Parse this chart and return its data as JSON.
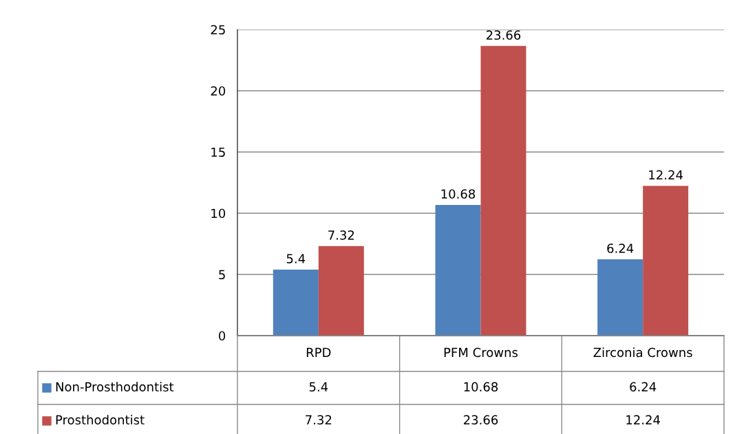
{
  "chart_data": {
    "type": "bar",
    "categories": [
      "RPD",
      "PFM Crowns",
      "Zirconia Crowns"
    ],
    "series": [
      {
        "name": "Non-Prosthodontist",
        "color": "#4f81bd",
        "values": [
          5.4,
          10.68,
          6.24
        ],
        "value_labels": [
          "5.4",
          "10.68",
          "6.24"
        ]
      },
      {
        "name": "Prosthodontist",
        "color": "#c0504d",
        "values": [
          7.32,
          23.66,
          12.24
        ],
        "value_labels": [
          "7.32",
          "23.66",
          "12.24"
        ]
      }
    ],
    "legend": "bottom left",
    "ylim": [
      0,
      25
    ],
    "yticks": [
      0,
      5,
      10,
      15,
      20,
      25
    ],
    "grid": "y",
    "annotations": [
      "5.4",
      "10.68",
      "6.24",
      "7.32",
      "23.66",
      "12.24"
    ]
  }
}
